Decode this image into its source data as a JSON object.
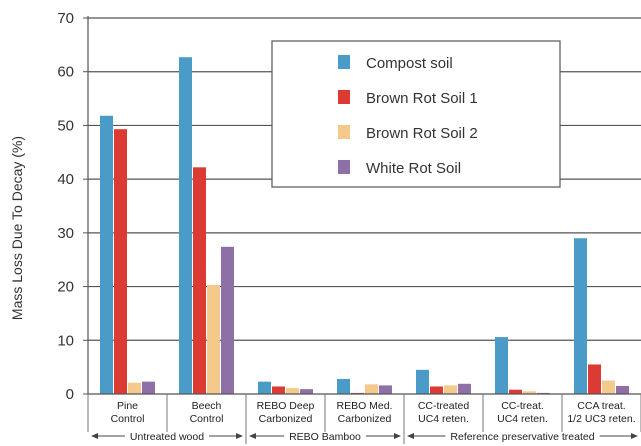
{
  "chart_data": {
    "type": "bar",
    "title": "",
    "xlabel": "",
    "ylabel": "Mass Loss Due To Decay (%)",
    "ylim": [
      0,
      70
    ],
    "yticks": [
      0,
      10,
      20,
      30,
      40,
      50,
      60,
      70
    ],
    "grid": true,
    "legend_position": "top-right",
    "categories": [
      [
        "Pine",
        "Control"
      ],
      [
        "Beech",
        "Control"
      ],
      [
        "REBO Deep",
        "Carbonized"
      ],
      [
        "REBO Med.",
        "Carbonized"
      ],
      [
        "CC-treated",
        "UC4 reten."
      ],
      [
        "CC-treat.",
        "UC4 reten."
      ],
      [
        "CCA treat.",
        "1/2 UC3 reten."
      ]
    ],
    "category_groups": [
      {
        "label": "Untreated wood",
        "start": 0,
        "end": 1
      },
      {
        "label": "REBO Bamboo",
        "start": 2,
        "end": 3
      },
      {
        "label": "Reference preservative treated",
        "start": 4,
        "end": 6
      }
    ],
    "series": [
      {
        "name": "Compost soil",
        "color": "#4a9bc8",
        "values": [
          51.8,
          62.7,
          2.3,
          2.8,
          4.5,
          10.6,
          29.0
        ]
      },
      {
        "name": "Brown Rot Soil 1",
        "color": "#dc3b34",
        "values": [
          49.3,
          42.2,
          1.4,
          0.2,
          1.4,
          0.8,
          5.5
        ]
      },
      {
        "name": "Brown Rot Soil 2",
        "color": "#f4c98c",
        "values": [
          2.1,
          20.3,
          1.1,
          1.8,
          1.6,
          0.5,
          2.5
        ]
      },
      {
        "name": "White Rot Soil",
        "color": "#8e6fa6",
        "values": [
          2.3,
          27.4,
          0.9,
          1.6,
          1.9,
          0.2,
          1.5
        ]
      }
    ]
  }
}
